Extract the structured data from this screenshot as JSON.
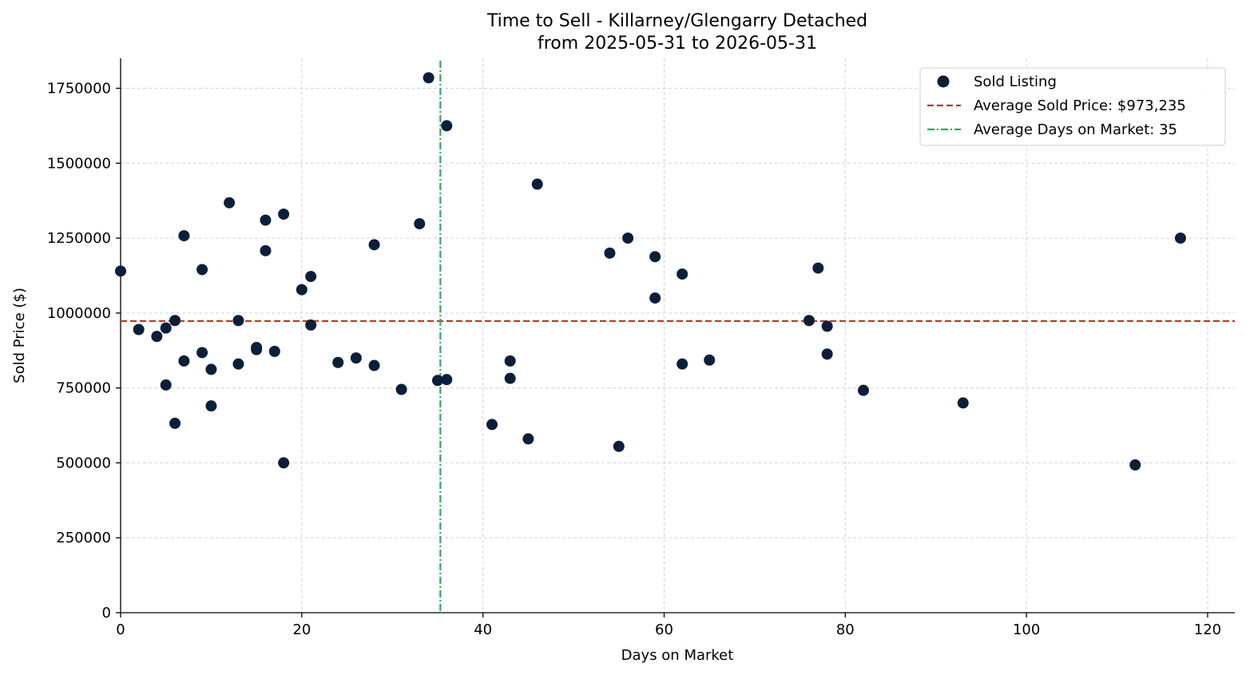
{
  "chart_data": {
    "type": "scatter",
    "title_line1": "Time to Sell - Killarney/Glengarry Detached",
    "title_line2": "from 2025-05-31 to 2026-05-31",
    "xlabel": "Days on Market",
    "ylabel": "Sold Price ($)",
    "xlim": [
      0,
      123
    ],
    "ylim": [
      0,
      1850000
    ],
    "x_ticks": [
      0,
      20,
      40,
      60,
      80,
      100,
      120
    ],
    "y_ticks": [
      0,
      250000,
      500000,
      750000,
      1000000,
      1250000,
      1500000,
      1750000
    ],
    "grid": true,
    "legend_placement": "top-right",
    "colors": {
      "points": "#0b1f3a",
      "avg_price_line": "#c0392b",
      "avg_days_line": "#27ae60"
    },
    "series": [
      {
        "name": "Sold Listing",
        "points": [
          [
            0,
            1140000
          ],
          [
            2,
            945000
          ],
          [
            4,
            922000
          ],
          [
            5,
            950000
          ],
          [
            5,
            760000
          ],
          [
            6,
            975000
          ],
          [
            6,
            632000
          ],
          [
            7,
            1258000
          ],
          [
            7,
            840000
          ],
          [
            9,
            1145000
          ],
          [
            9,
            868000
          ],
          [
            10,
            812000
          ],
          [
            10,
            690000
          ],
          [
            12,
            1368000
          ],
          [
            13,
            975000
          ],
          [
            13,
            830000
          ],
          [
            15,
            885000
          ],
          [
            15,
            878000
          ],
          [
            16,
            1310000
          ],
          [
            16,
            1208000
          ],
          [
            17,
            872000
          ],
          [
            18,
            1330000
          ],
          [
            18,
            500000
          ],
          [
            20,
            1078000
          ],
          [
            21,
            1122000
          ],
          [
            21,
            960000
          ],
          [
            24,
            835000
          ],
          [
            26,
            850000
          ],
          [
            28,
            1228000
          ],
          [
            28,
            825000
          ],
          [
            31,
            745000
          ],
          [
            33,
            1298000
          ],
          [
            34,
            1785000
          ],
          [
            35,
            775000
          ],
          [
            36,
            1625000
          ],
          [
            36,
            778000
          ],
          [
            41,
            628000
          ],
          [
            43,
            840000
          ],
          [
            43,
            782000
          ],
          [
            45,
            580000
          ],
          [
            46,
            1430000
          ],
          [
            54,
            1200000
          ],
          [
            55,
            555000
          ],
          [
            56,
            1250000
          ],
          [
            59,
            1188000
          ],
          [
            59,
            1050000
          ],
          [
            62,
            1130000
          ],
          [
            62,
            830000
          ],
          [
            65,
            843000
          ],
          [
            76,
            975000
          ],
          [
            77,
            1150000
          ],
          [
            78,
            956000
          ],
          [
            78,
            863000
          ],
          [
            82,
            742000
          ],
          [
            93,
            700000
          ],
          [
            112,
            493000
          ],
          [
            117,
            1250000
          ]
        ]
      }
    ],
    "avg_price": 973235,
    "avg_days": 35.3,
    "legend": {
      "sold_label": "Sold Listing",
      "avg_price_label": "Average Sold Price: $973,235",
      "avg_days_label": "Average Days on Market: 35"
    }
  }
}
